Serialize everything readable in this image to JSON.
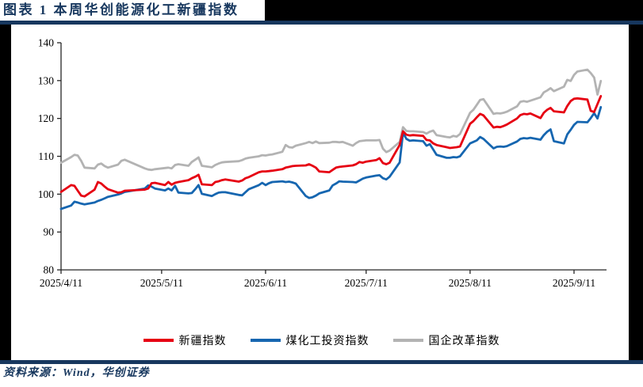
{
  "header": {
    "title": "图表 1 本周华创能源化工新疆指数"
  },
  "footer": {
    "source": "资料来源：Wind，华创证券"
  },
  "colors": {
    "accent_navy": "#17375e",
    "frame_black": "#000000",
    "series_red": "#e60012",
    "series_blue": "#1666b0",
    "series_gray": "#b3b3b3"
  },
  "chart_data": {
    "type": "line",
    "title": "",
    "xlabel": "",
    "ylabel": "",
    "ylim": [
      80,
      140
    ],
    "yticks": [
      80,
      90,
      100,
      110,
      120,
      130,
      140
    ],
    "xticks": {
      "labels": [
        "2025/4/11",
        "2025/5/11",
        "2025/6/11",
        "2025/7/11",
        "2025/8/11",
        "2025/9/11"
      ],
      "days": [
        0,
        30,
        61,
        91,
        122,
        153
      ]
    },
    "x_unit": "days since 2025/4/11 (trading days)",
    "x_axis_end_day": 162.7,
    "grid": false,
    "legend_position": "bottom",
    "x_days": [
      0,
      3,
      4,
      5,
      6,
      7,
      10,
      11,
      12,
      13,
      14,
      17,
      18,
      19,
      25,
      26,
      27,
      28,
      31,
      32,
      33,
      34,
      35,
      38,
      39,
      40,
      41,
      42,
      45,
      46,
      47,
      48,
      49,
      53,
      54,
      55,
      56,
      59,
      60,
      61,
      62,
      63,
      66,
      67,
      68,
      69,
      70,
      73,
      74,
      75,
      76,
      77,
      80,
      81,
      82,
      83,
      84,
      87,
      88,
      89,
      90,
      91,
      94,
      95,
      96,
      97,
      98,
      101,
      102,
      103,
      104,
      105,
      108,
      109,
      110,
      111,
      112,
      115,
      116,
      117,
      118,
      119,
      122,
      123,
      124,
      125,
      126,
      129,
      130,
      131,
      132,
      133,
      136,
      137,
      138,
      139,
      140,
      143,
      144,
      145,
      146,
      147,
      150,
      151,
      152,
      153,
      154,
      157,
      158,
      159,
      160,
      161
    ],
    "series": [
      {
        "name": "新疆指数",
        "color": "#e60012",
        "values": [
          100.6,
          102.4,
          102.2,
          100.9,
          99.6,
          99.4,
          101.2,
          103.2,
          102.8,
          102.0,
          101.3,
          100.4,
          100.5,
          100.9,
          101.2,
          101.5,
          102.9,
          103.0,
          102.4,
          103.2,
          102.5,
          103.0,
          103.2,
          103.7,
          104.2,
          104.6,
          105.1,
          102.6,
          102.4,
          103.2,
          103.4,
          103.7,
          103.9,
          103.3,
          103.6,
          104.2,
          104.5,
          105.8,
          106.0,
          106.0,
          106.1,
          106.2,
          106.6,
          107.0,
          107.2,
          107.4,
          107.5,
          107.6,
          107.9,
          107.5,
          107.0,
          106.0,
          105.8,
          106.4,
          107.0,
          107.2,
          107.3,
          107.6,
          107.9,
          108.5,
          108.3,
          108.6,
          109.0,
          109.5,
          108.2,
          107.9,
          108.3,
          113.0,
          116.6,
          115.7,
          115.5,
          115.6,
          115.4,
          114.3,
          114.2,
          113.4,
          113.0,
          112.4,
          112.2,
          112.3,
          112.4,
          112.6,
          118.6,
          119.3,
          120.3,
          121.2,
          120.8,
          117.6,
          117.8,
          117.7,
          118.0,
          118.4,
          120.0,
          120.9,
          121.2,
          121.1,
          121.3,
          120.1,
          121.5,
          122.3,
          122.8,
          121.9,
          121.6,
          123.3,
          124.6,
          125.2,
          125.3,
          125.0,
          122.0,
          121.7,
          123.8,
          125.9
        ]
      },
      {
        "name": "煤化工投资指数",
        "color": "#1666b0",
        "values": [
          96.1,
          97.0,
          98.0,
          97.8,
          97.5,
          97.3,
          97.8,
          98.2,
          98.5,
          98.9,
          99.3,
          99.9,
          100.2,
          100.6,
          101.5,
          102.3,
          102.0,
          101.5,
          101.0,
          101.5,
          101.0,
          102.2,
          100.4,
          100.2,
          100.3,
          101.3,
          102.4,
          100.1,
          99.5,
          100.0,
          100.4,
          100.5,
          100.5,
          99.8,
          99.7,
          100.5,
          101.3,
          102.4,
          103.0,
          102.4,
          102.9,
          103.2,
          103.4,
          103.2,
          103.3,
          103.1,
          102.8,
          99.5,
          99.0,
          99.2,
          99.6,
          100.2,
          101.0,
          102.3,
          102.8,
          103.4,
          103.3,
          103.2,
          103.1,
          103.6,
          104.1,
          104.4,
          104.9,
          105.0,
          104.2,
          103.9,
          104.6,
          108.4,
          116.2,
          114.6,
          114.1,
          114.2,
          114.0,
          112.8,
          113.2,
          111.8,
          110.4,
          109.6,
          109.6,
          109.8,
          109.7,
          110.0,
          113.4,
          113.8,
          114.2,
          115.1,
          114.6,
          112.1,
          112.5,
          112.6,
          112.5,
          112.7,
          113.9,
          114.6,
          114.8,
          114.7,
          114.9,
          114.4,
          115.6,
          116.5,
          117.1,
          114.0,
          113.4,
          115.8,
          117.0,
          118.3,
          119.1,
          119.0,
          120.1,
          121.4,
          120.0,
          123.0
        ]
      },
      {
        "name": "国企改革指数",
        "color": "#b3b3b3",
        "values": [
          108.3,
          109.8,
          110.4,
          110.2,
          108.8,
          107.0,
          106.8,
          107.8,
          108.1,
          107.4,
          107.0,
          107.8,
          108.8,
          109.1,
          106.8,
          106.5,
          106.4,
          106.6,
          106.9,
          107.0,
          106.8,
          107.7,
          107.9,
          107.5,
          108.5,
          109.1,
          109.7,
          107.5,
          107.1,
          107.7,
          108.1,
          108.4,
          108.5,
          108.7,
          109.0,
          109.4,
          109.6,
          110.0,
          110.3,
          110.2,
          110.4,
          110.5,
          111.2,
          113.0,
          112.4,
          112.3,
          112.8,
          113.5,
          113.8,
          113.5,
          113.9,
          113.5,
          113.6,
          113.8,
          113.8,
          113.7,
          113.8,
          112.8,
          113.5,
          114.0,
          114.1,
          114.2,
          114.2,
          114.3,
          112.0,
          111.1,
          111.5,
          113.8,
          117.7,
          116.7,
          116.6,
          116.6,
          116.4,
          116.0,
          116.5,
          116.8,
          115.6,
          115.1,
          115.0,
          115.4,
          115.2,
          115.9,
          121.5,
          122.3,
          123.6,
          124.9,
          125.1,
          121.2,
          121.4,
          121.3,
          121.5,
          121.8,
          123.2,
          124.4,
          124.6,
          124.4,
          124.7,
          125.6,
          126.9,
          127.4,
          128.0,
          127.2,
          128.4,
          130.2,
          129.9,
          131.5,
          132.4,
          132.9,
          132.0,
          130.8,
          126.3,
          129.9
        ]
      }
    ]
  }
}
